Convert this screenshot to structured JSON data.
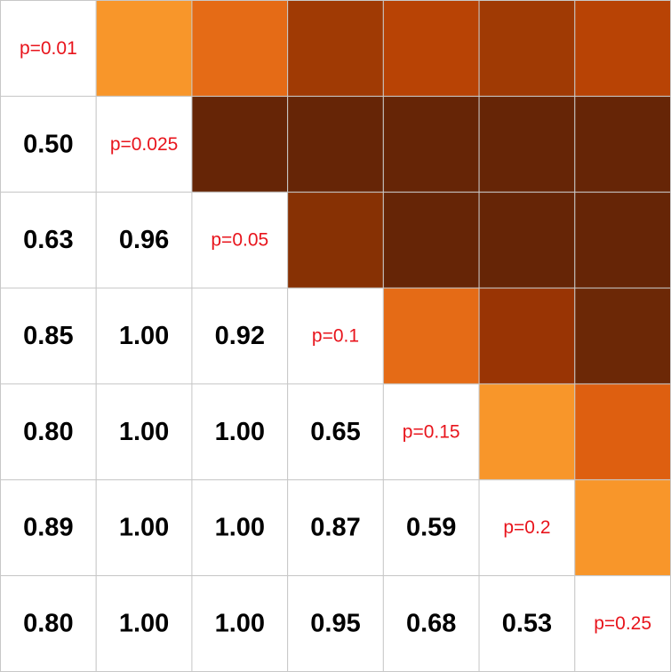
{
  "chart_data": {
    "type": "heatmap",
    "title": "",
    "xlabel": "",
    "ylabel": "",
    "n": 7,
    "diagonal_labels": [
      "p=0.01",
      "p=0.025",
      "p=0.05",
      "p=0.1",
      "p=0.15",
      "p=0.2",
      "p=0.25"
    ],
    "lower_values": [
      {
        "row": 1,
        "col": 0,
        "label": "0.50",
        "value": 0.5
      },
      {
        "row": 2,
        "col": 0,
        "label": "0.63",
        "value": 0.63
      },
      {
        "row": 2,
        "col": 1,
        "label": "0.96",
        "value": 0.96
      },
      {
        "row": 3,
        "col": 0,
        "label": "0.85",
        "value": 0.85
      },
      {
        "row": 3,
        "col": 1,
        "label": "1.00",
        "value": 1.0
      },
      {
        "row": 3,
        "col": 2,
        "label": "0.92",
        "value": 0.92
      },
      {
        "row": 4,
        "col": 0,
        "label": "0.80",
        "value": 0.8
      },
      {
        "row": 4,
        "col": 1,
        "label": "1.00",
        "value": 1.0
      },
      {
        "row": 4,
        "col": 2,
        "label": "1.00",
        "value": 1.0
      },
      {
        "row": 4,
        "col": 3,
        "label": "0.65",
        "value": 0.65
      },
      {
        "row": 5,
        "col": 0,
        "label": "0.89",
        "value": 0.89
      },
      {
        "row": 5,
        "col": 1,
        "label": "1.00",
        "value": 1.0
      },
      {
        "row": 5,
        "col": 2,
        "label": "1.00",
        "value": 1.0
      },
      {
        "row": 5,
        "col": 3,
        "label": "0.87",
        "value": 0.87
      },
      {
        "row": 5,
        "col": 4,
        "label": "0.59",
        "value": 0.59
      },
      {
        "row": 6,
        "col": 0,
        "label": "0.80",
        "value": 0.8
      },
      {
        "row": 6,
        "col": 1,
        "label": "1.00",
        "value": 1.0
      },
      {
        "row": 6,
        "col": 2,
        "label": "1.00",
        "value": 1.0
      },
      {
        "row": 6,
        "col": 3,
        "label": "0.95",
        "value": 0.95
      },
      {
        "row": 6,
        "col": 4,
        "label": "0.68",
        "value": 0.68
      },
      {
        "row": 6,
        "col": 5,
        "label": "0.53",
        "value": 0.53
      }
    ],
    "upper_colors": [
      {
        "row": 0,
        "col": 1,
        "color": "#f8962a"
      },
      {
        "row": 0,
        "col": 2,
        "color": "#e56b16"
      },
      {
        "row": 0,
        "col": 3,
        "color": "#a03a04"
      },
      {
        "row": 0,
        "col": 4,
        "color": "#b84305"
      },
      {
        "row": 0,
        "col": 5,
        "color": "#a03a04"
      },
      {
        "row": 0,
        "col": 6,
        "color": "#b84305"
      },
      {
        "row": 1,
        "col": 2,
        "color": "#662506"
      },
      {
        "row": 1,
        "col": 3,
        "color": "#662506"
      },
      {
        "row": 1,
        "col": 4,
        "color": "#662506"
      },
      {
        "row": 1,
        "col": 5,
        "color": "#662506"
      },
      {
        "row": 1,
        "col": 6,
        "color": "#662506"
      },
      {
        "row": 2,
        "col": 3,
        "color": "#873104"
      },
      {
        "row": 2,
        "col": 4,
        "color": "#662506"
      },
      {
        "row": 2,
        "col": 5,
        "color": "#662506"
      },
      {
        "row": 2,
        "col": 6,
        "color": "#662506"
      },
      {
        "row": 3,
        "col": 4,
        "color": "#e56b16"
      },
      {
        "row": 3,
        "col": 5,
        "color": "#993404"
      },
      {
        "row": 3,
        "col": 6,
        "color": "#6c2806"
      },
      {
        "row": 4,
        "col": 5,
        "color": "#f8962a"
      },
      {
        "row": 4,
        "col": 6,
        "color": "#de5f10"
      },
      {
        "row": 5,
        "col": 6,
        "color": "#f8962a"
      }
    ],
    "colors": {
      "background": "#ffffff",
      "grid": "#c8c8c8",
      "diagonal_text": "#e8141c",
      "value_text": "#000000"
    },
    "grid": true
  }
}
